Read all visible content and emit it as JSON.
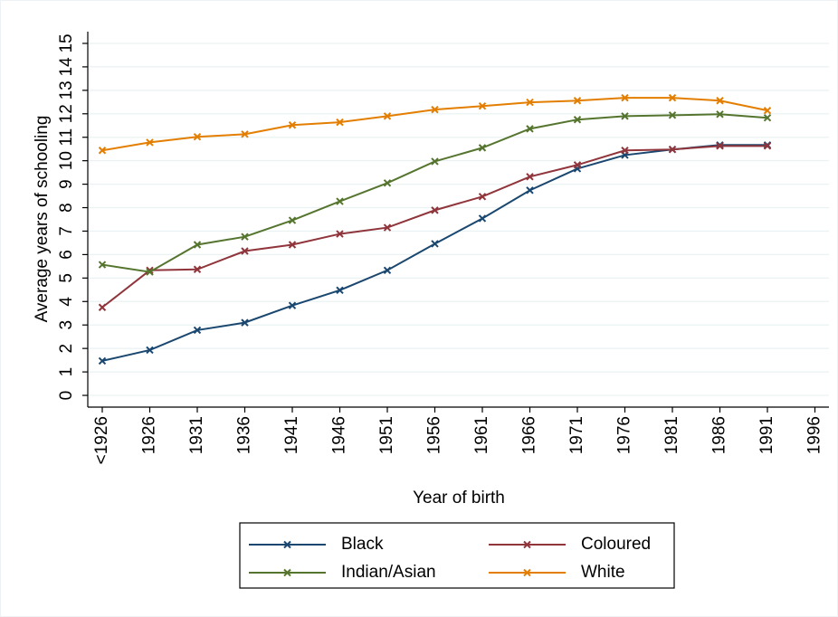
{
  "chart_data": {
    "type": "line",
    "y_label": "Average years of schooling",
    "x_label": "Year of birth",
    "categories": [
      "<1926",
      "1926",
      "1931",
      "1936",
      "1941",
      "1946",
      "1951",
      "1956",
      "1961",
      "1966",
      "1971",
      "1976",
      "1981",
      "1986",
      "1991",
      "1996"
    ],
    "series": [
      {
        "name": "Black",
        "color": "#1a476f",
        "values": [
          1.47,
          1.93,
          2.78,
          3.1,
          3.83,
          4.48,
          5.33,
          6.46,
          7.54,
          8.74,
          9.66,
          10.24,
          10.48,
          10.67,
          10.67,
          null
        ]
      },
      {
        "name": "Coloured",
        "color": "#90353b",
        "values": [
          3.75,
          5.33,
          5.37,
          6.15,
          6.42,
          6.88,
          7.15,
          7.89,
          8.47,
          9.32,
          9.82,
          10.44,
          10.48,
          10.63,
          10.63,
          null
        ]
      },
      {
        "name": "Indian/Asian",
        "color": "#55752f",
        "values": [
          5.57,
          5.26,
          6.42,
          6.76,
          7.46,
          8.27,
          9.05,
          9.97,
          10.55,
          11.36,
          11.75,
          11.9,
          11.94,
          11.98,
          11.83,
          null
        ]
      },
      {
        "name": "White",
        "color": "#e37e00",
        "values": [
          10.44,
          10.78,
          11.02,
          11.13,
          11.52,
          11.64,
          11.9,
          12.18,
          12.33,
          12.49,
          12.56,
          12.68,
          12.68,
          12.56,
          12.14,
          null
        ]
      }
    ],
    "ylim": [
      -0.5,
      15.5
    ],
    "yticks": [
      0,
      1,
      2,
      3,
      4,
      5,
      6,
      7,
      8,
      9,
      10,
      11,
      12,
      13,
      14,
      15
    ],
    "grid": true
  }
}
